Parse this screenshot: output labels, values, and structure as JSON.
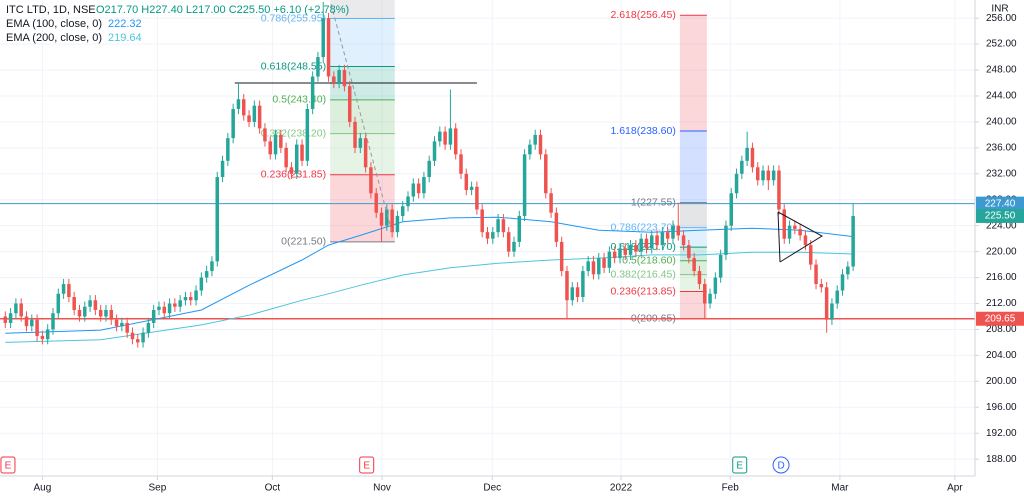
{
  "chart_data": {
    "type": "candlestick",
    "title": "ITC LTD, 1D, NSE",
    "quote": "O217.70 H227.40 L217.00 C225.50 +6.10 (+2.78%)",
    "currency": "INR",
    "up_color": "#26a69a",
    "down_color": "#ef5350",
    "xlim": [
      -1,
      183
    ],
    "xticks": [
      {
        "value": 7,
        "label": "Aug"
      },
      {
        "value": 28.7,
        "label": "Sep"
      },
      {
        "value": 50.4,
        "label": "Oct"
      },
      {
        "value": 71.1,
        "label": "Nov"
      },
      {
        "value": 91.9,
        "label": "Dec"
      },
      {
        "value": 116.2,
        "label": "2022"
      },
      {
        "value": 136.8,
        "label": "Feb"
      },
      {
        "value": 157.5,
        "label": "Mar"
      },
      {
        "value": 179.2,
        "label": "Apr"
      }
    ],
    "ylim": [
      185.4,
      258.8
    ],
    "yticks": [
      {
        "value": 188,
        "label": "188.00"
      },
      {
        "value": 192,
        "label": "192.00"
      },
      {
        "value": 196,
        "label": "196.00"
      },
      {
        "value": 200,
        "label": "200.00"
      },
      {
        "value": 204,
        "label": "204.00"
      },
      {
        "value": 208,
        "label": "208.00"
      },
      {
        "value": 212,
        "label": "212.00"
      },
      {
        "value": 216,
        "label": "216.00"
      },
      {
        "value": 220,
        "label": "220.00"
      },
      {
        "value": 224,
        "label": "224.00"
      },
      {
        "value": 228,
        "label": "228.00"
      },
      {
        "value": 232,
        "label": "232.00"
      },
      {
        "value": 236,
        "label": "236.00"
      },
      {
        "value": 240,
        "label": "240.00"
      },
      {
        "value": 244,
        "label": "244.00"
      },
      {
        "value": 248,
        "label": "248.00"
      },
      {
        "value": 252,
        "label": "252.00"
      },
      {
        "value": 256,
        "label": "256.00"
      }
    ],
    "grid": true,
    "open": [
      210,
      209,
      210.5,
      212,
      210,
      208.5,
      209.5,
      207,
      206.5,
      208,
      210.5,
      213.5,
      215,
      213,
      211,
      210,
      211.5,
      212.5,
      211,
      210,
      211,
      209.5,
      208.5,
      209,
      207.5,
      206.5,
      206,
      207.5,
      209,
      211,
      211.5,
      210.5,
      212,
      211.5,
      212.5,
      213,
      212.5,
      214,
      216,
      217,
      218.5,
      231.5,
      234,
      237.5,
      242,
      243.5,
      241,
      240,
      242.5,
      239,
      237,
      235,
      238,
      236,
      233,
      232,
      236.5,
      234,
      242,
      247,
      250,
      256,
      247,
      246,
      248,
      245.5,
      240,
      236,
      237.5,
      233,
      229,
      226,
      224,
      226.5,
      223,
      225.5,
      227,
      228.5,
      230.5,
      229,
      231.5,
      234,
      237,
      238.5,
      236.5,
      239,
      235,
      232,
      229.5,
      230,
      226.5,
      223,
      222,
      223,
      225,
      223,
      220,
      221.5,
      225.5,
      235,
      236.5,
      238,
      235,
      229,
      226,
      221.5,
      217,
      212.5,
      214.5,
      213,
      217,
      218.5,
      216.5,
      219,
      217.5,
      220,
      219,
      220.5,
      219.5,
      221,
      220,
      222,
      220.5,
      222.5,
      221,
      223,
      222,
      224,
      222.5,
      221,
      219,
      217,
      215,
      212,
      213.5,
      216,
      219.5,
      224,
      229,
      232,
      234,
      236,
      233,
      231,
      232.5,
      231,
      232.5,
      226.5,
      222,
      224,
      223.5,
      222.5,
      221,
      218,
      215,
      214.5,
      209.5,
      212,
      214,
      216.5,
      217.7
    ],
    "high": [
      210.8,
      211.3,
      212.8,
      212.8,
      210.8,
      210.3,
      210.3,
      207.8,
      208.8,
      211.3,
      214.3,
      215.8,
      215.8,
      213.8,
      211.8,
      212.3,
      213.3,
      213.3,
      211.8,
      211.8,
      211.8,
      210.3,
      209.8,
      209.8,
      208.3,
      207.3,
      208.3,
      209.8,
      211.8,
      212.3,
      212.3,
      212.8,
      212.8,
      213.3,
      213.8,
      213.8,
      214.8,
      216.8,
      217.8,
      219.3,
      232.3,
      234.8,
      238.3,
      242.8,
      246,
      244.3,
      241.8,
      243.3,
      243.3,
      239.8,
      237.8,
      238.8,
      238.8,
      236.8,
      233.8,
      237.3,
      237.3,
      242.8,
      247.8,
      250.8,
      258.5,
      256.8,
      247.8,
      248.8,
      248.8,
      246.3,
      240.8,
      238.3,
      238.3,
      233.8,
      229.8,
      226.8,
      227.3,
      227.3,
      226.3,
      227.8,
      229.3,
      231.3,
      231.3,
      232.3,
      234.8,
      237.8,
      239.3,
      239.3,
      245,
      239.8,
      235.8,
      232.8,
      230.8,
      230.8,
      227.3,
      223.8,
      223.8,
      225.8,
      225.8,
      223.8,
      222.3,
      226.3,
      235.8,
      237.3,
      238.8,
      238.8,
      235.8,
      229.8,
      226.8,
      222.3,
      217.8,
      215.3,
      215.3,
      217.8,
      219.3,
      219.3,
      219.8,
      219.8,
      220.8,
      220.8,
      221.3,
      221.3,
      221.8,
      221.8,
      222.8,
      222.8,
      223.3,
      223.3,
      223.8,
      223.8,
      224.8,
      227.55,
      223.3,
      221.8,
      219.8,
      217.8,
      215.8,
      214.3,
      216.8,
      220.3,
      224.8,
      229.8,
      232.8,
      234.8,
      238.5,
      236.8,
      233.8,
      233.3,
      233.3,
      233.3,
      233.3,
      227.3,
      224.8,
      224.8,
      224.3,
      223.3,
      221.8,
      218.8,
      215.8,
      215.3,
      212.8,
      214.8,
      217.3,
      218.5,
      227.4
    ],
    "low": [
      208.2,
      208.2,
      209.7,
      209.2,
      207.7,
      207.7,
      206.2,
      205.7,
      205.7,
      207.2,
      209.7,
      212.7,
      212.2,
      210.2,
      209.2,
      209.2,
      210.7,
      210.2,
      209.2,
      209.2,
      208.7,
      207.7,
      207.7,
      206.7,
      205.7,
      205.2,
      205.2,
      206.7,
      208.2,
      210.2,
      209.7,
      209.7,
      210.7,
      210.7,
      211.7,
      211.7,
      211.7,
      213.2,
      215.2,
      216.2,
      217.7,
      230.7,
      233.2,
      236.7,
      241.2,
      240.2,
      239.2,
      239.2,
      238.2,
      236.2,
      234.2,
      234.2,
      235.2,
      232.2,
      231.2,
      231.2,
      233.2,
      233.2,
      241.2,
      246.2,
      249.2,
      246.2,
      245.2,
      245.2,
      244.7,
      239.2,
      235.2,
      235.2,
      232.2,
      228.2,
      225.2,
      221.5,
      223.2,
      222.2,
      222.2,
      224.7,
      226.2,
      227.7,
      228.2,
      228.2,
      230.7,
      233.2,
      236.2,
      235.7,
      235.7,
      234.2,
      231.2,
      228.7,
      228.7,
      225.7,
      222.2,
      221.2,
      221.2,
      222.2,
      222.2,
      219.2,
      219.2,
      220.7,
      224.7,
      234.2,
      235.7,
      234.2,
      228.2,
      225.2,
      220.7,
      216.2,
      209.65,
      211.7,
      212.2,
      212.2,
      216.2,
      215.7,
      215.7,
      216.7,
      216.7,
      218.2,
      218.2,
      218.7,
      218.7,
      219.2,
      219.2,
      219.7,
      219.7,
      220.2,
      220.2,
      221.2,
      221.2,
      221.7,
      220.2,
      218.2,
      216.2,
      214.2,
      209.65,
      211.2,
      212.7,
      215.2,
      218.7,
      223.2,
      228.2,
      231.2,
      233.2,
      232.2,
      230.2,
      230.2,
      229.5,
      230.2,
      225.7,
      221.2,
      221.2,
      222.7,
      221.7,
      220.2,
      217.2,
      214.2,
      213.7,
      207.5,
      208.7,
      211.2,
      213.2,
      215.7,
      217
    ],
    "close": [
      209,
      210.5,
      212,
      210,
      208.5,
      209.5,
      207,
      206.5,
      208,
      210.5,
      213.5,
      215,
      213,
      211,
      210,
      211.5,
      212.5,
      211,
      210,
      211,
      209.5,
      208.5,
      209,
      207.5,
      206.5,
      206,
      207.5,
      209,
      211,
      211.5,
      210.5,
      212,
      211.5,
      212.5,
      213,
      212.5,
      214,
      216,
      217,
      218.5,
      231.5,
      234,
      237.5,
      242,
      243.5,
      241,
      240,
      242.5,
      239,
      237,
      235,
      238,
      236,
      233,
      232,
      236.5,
      234,
      242,
      247,
      250,
      256,
      247,
      246,
      248,
      245.5,
      240,
      236,
      237.5,
      233,
      229,
      226,
      224,
      226.5,
      223,
      225.5,
      227,
      228.5,
      230.5,
      229,
      231.5,
      234,
      237,
      238.5,
      236.5,
      239,
      235,
      232,
      229.5,
      230,
      226.5,
      223,
      222,
      223,
      225,
      223,
      220,
      221.5,
      225.5,
      235,
      236.5,
      238,
      235,
      229,
      226,
      221.5,
      217,
      212.5,
      214.5,
      213,
      217,
      218.5,
      216.5,
      219,
      217.5,
      220,
      219,
      220.5,
      219.5,
      221,
      220,
      222,
      220.5,
      222.5,
      221,
      223,
      222,
      224,
      222.5,
      221,
      219,
      217,
      215,
      212,
      213.5,
      216,
      219.5,
      224,
      229,
      232,
      234,
      236,
      233,
      231,
      232.5,
      231,
      232.5,
      226.5,
      222,
      224,
      223.5,
      222.5,
      221,
      218,
      215,
      214.5,
      209.5,
      212,
      214,
      216.5,
      217.7,
      225.5
    ],
    "ema": [
      {
        "name": "EMA (100, close, 0)",
        "last": 222.32,
        "color": "#2196f3",
        "x": [
          0,
          18,
          37,
          46,
          56,
          61,
          67,
          75,
          84,
          93,
          103,
          112,
          122,
          131,
          141,
          150,
          160
        ],
        "values": [
          207.4,
          207.9,
          211,
          214.8,
          218.7,
          221,
          222.5,
          224.6,
          225.2,
          225.3,
          224.6,
          223.3,
          223,
          223.3,
          223.6,
          223.3,
          222.32
        ]
      },
      {
        "name": "EMA (200, close, 0)",
        "last": 219.64,
        "color": "#4dc4dd",
        "x": [
          0,
          18,
          37,
          46,
          56,
          61,
          67,
          75,
          84,
          93,
          103,
          112,
          122,
          131,
          141,
          150,
          160
        ],
        "values": [
          206,
          206.4,
          208.7,
          210.2,
          212.5,
          213.5,
          214.8,
          216.4,
          217.5,
          218.2,
          218.7,
          219,
          219.5,
          219.5,
          219.9,
          219.9,
          219.64
        ]
      }
    ],
    "hline": {
      "value": 246,
      "x": [
        43.3,
        89
      ],
      "color": "#131722"
    },
    "price_lines": [
      {
        "value": 227.4,
        "label": "227.40",
        "color": "#3d9ad1",
        "line": true
      },
      {
        "value": 225.5,
        "label": "225.50",
        "color": "#26a69a",
        "line": false
      },
      {
        "value": 209.65,
        "label": "209.65",
        "color": "#ef5350",
        "line": true
      }
    ],
    "fibs": [
      {
        "x": [
          61.3,
          73.5
        ],
        "top_fill": "#9598a1",
        "levels": [
          {
            "value": 221.5,
            "label": "0(221.50)",
            "color": "#787b86"
          },
          {
            "value": 231.85,
            "label": "0.236(231.85)",
            "color": "#f23645"
          },
          {
            "value": 238.2,
            "label": "0.382(238.20)",
            "color": "#81c784"
          },
          {
            "value": 243.4,
            "label": "0.5(243.40)",
            "color": "#4caf50"
          },
          {
            "value": 248.55,
            "label": "0.618(248.55)",
            "color": "#089981"
          },
          {
            "value": 255.95,
            "label": "0.786(255.95)",
            "color": "#64b5f6"
          }
        ]
      },
      {
        "x": [
          127.3,
          132.4
        ],
        "levels": [
          {
            "value": 209.65,
            "label": "0(209.65)",
            "color": "#787b86"
          },
          {
            "value": 213.85,
            "label": "0.236(213.85)",
            "color": "#f23645"
          },
          {
            "value": 216.45,
            "label": "0.382(216.45)",
            "color": "#81c784"
          },
          {
            "value": 218.6,
            "label": "0.5(218.60)",
            "color": "#4caf50"
          },
          {
            "value": 220.7,
            "label": "0.618(220.70)",
            "color": "#089981"
          },
          {
            "value": 223.7,
            "label": "0.786(223.70)",
            "color": "#64b5f6"
          },
          {
            "value": 227.55,
            "label": "1(227.55)",
            "color": "#787b86"
          },
          {
            "value": 238.6,
            "label": "1.618(238.60)",
            "color": "#2962ff"
          },
          {
            "value": 256.45,
            "label": "2.618(256.45)",
            "color": "#f23645"
          }
        ]
      }
    ],
    "events": [
      {
        "label": "E",
        "x": 0.5,
        "color": "#f23645"
      },
      {
        "label": "E",
        "x": 68.2,
        "color": "#f23645"
      },
      {
        "label": "E",
        "x": 138.6,
        "color": "#089981"
      },
      {
        "label": "D",
        "x": 146.4,
        "color": "#2962ff"
      }
    ]
  }
}
